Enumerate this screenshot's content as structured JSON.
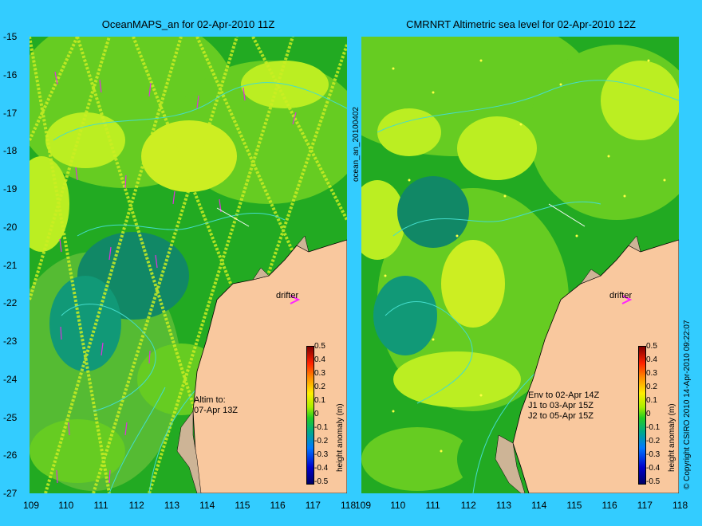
{
  "left_title": "OceanMAPS_an for 02-Apr-2010 11Z",
  "right_title": "CMRNRT Altimetric sea level  for 02-Apr-2010 12Z",
  "x_ticks": [
    "109",
    "110",
    "111",
    "112",
    "113",
    "114",
    "115",
    "116",
    "117",
    "118"
  ],
  "y_ticks": [
    "-15",
    "-16",
    "-17",
    "-18",
    "-19",
    "-20",
    "-21",
    "-22",
    "-23",
    "-24",
    "-25",
    "-26",
    "-27"
  ],
  "left_side_label": "ocean_an_20100402",
  "right_side_label": "© Copyright CSIRO 2010   14-Apr-2010 09:22:07",
  "drifter_label": "drifter",
  "left_note": "Altim to:\n07-Apr 13Z",
  "right_note": "Env to 02-Apr 14Z\nJ1 to 03-Apr 15Z\nJ2 to 05-Apr 15Z",
  "colorbar": {
    "label": "height anomaly (m)",
    "ticks": [
      "0.5",
      "0.4",
      "0.3",
      "0.2",
      "0.1",
      "0",
      "-0.1",
      "-0.2",
      "-0.3",
      "-0.4",
      "-0.5"
    ]
  },
  "colors": {
    "background": "#33ccff",
    "land": "#f9c89e",
    "coast": "#cdb496",
    "contour": "#44ddcc",
    "arrows": "#dd33dd"
  }
}
